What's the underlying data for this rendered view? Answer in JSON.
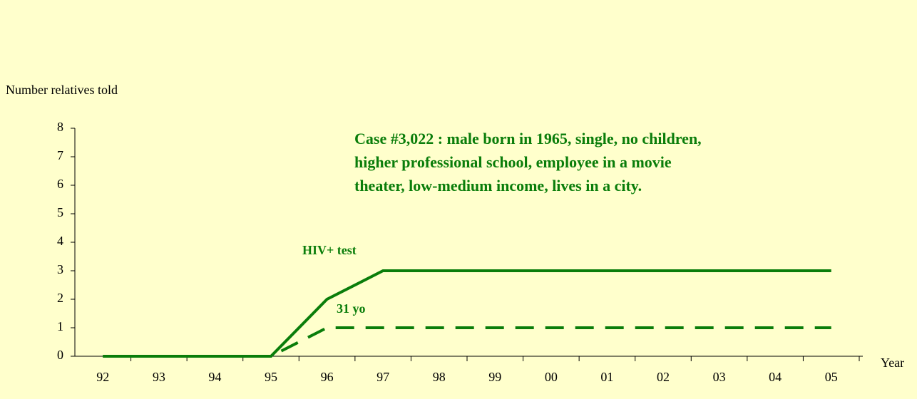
{
  "chart_data": {
    "type": "line",
    "y_label": "Number relatives told",
    "x_label": "Year",
    "annotations": {
      "case": [
        "Case #3,022 : male born in 1965, single, no children,",
        "higher professional school, employee in a movie",
        "theater, low-medium income, lives in a city."
      ],
      "test": "HIV+ test",
      "age": "31 yo"
    },
    "categories": [
      "92",
      "93",
      "94",
      "95",
      "96",
      "97",
      "98",
      "99",
      "00",
      "01",
      "02",
      "03",
      "04",
      "05"
    ],
    "series": [
      {
        "color": "#0a7d0a",
        "style": "solid",
        "values": [
          0,
          0,
          0,
          0,
          2,
          3,
          3,
          3,
          3,
          3,
          3,
          3,
          3,
          3
        ]
      },
      {
        "color": "#0a7d0a",
        "style": "dashed",
        "values": [
          0,
          0,
          0,
          0,
          1,
          1,
          1,
          1,
          1,
          1,
          1,
          1,
          1,
          1
        ]
      }
    ],
    "ylim": [
      0,
      8
    ],
    "yticks": [
      0,
      1,
      2,
      3,
      4,
      5,
      6,
      7,
      8
    ]
  }
}
